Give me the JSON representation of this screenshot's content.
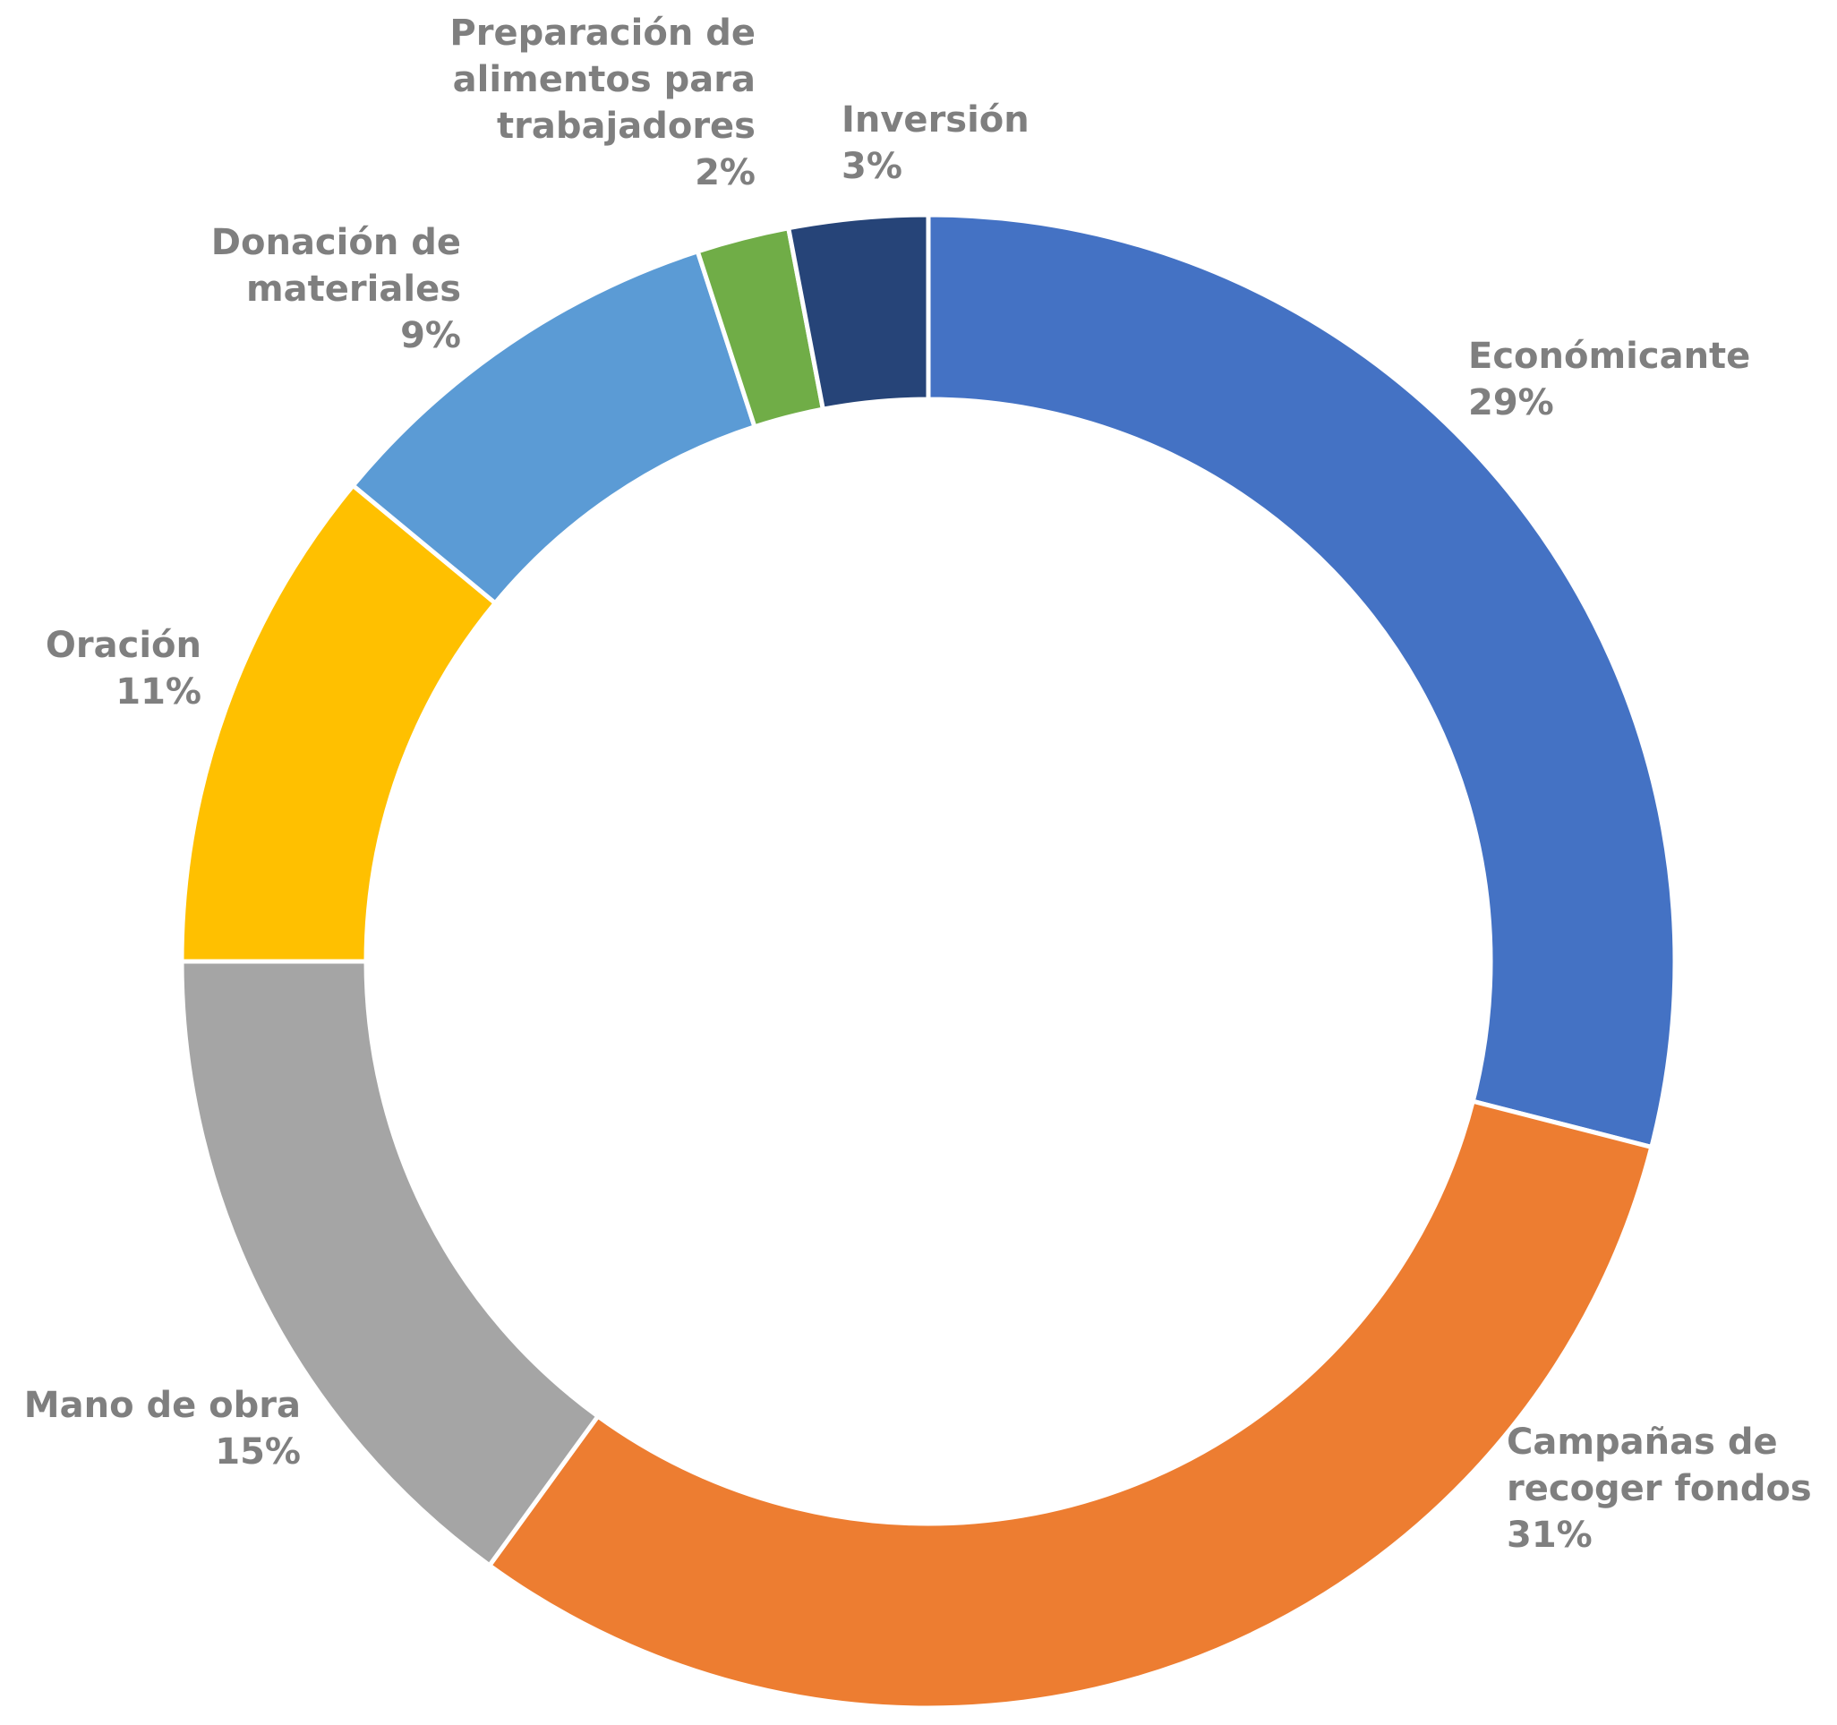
{
  "chart_data": {
    "type": "pie",
    "title": "",
    "slices": [
      {
        "label_lines": [
          "Económicante"
        ],
        "percent_label": "29%",
        "value": 29,
        "color": "#4472c4"
      },
      {
        "label_lines": [
          "Campañas de",
          "recoger fondos"
        ],
        "percent_label": "31%",
        "value": 31,
        "color": "#ed7d31"
      },
      {
        "label_lines": [
          "Mano de obra"
        ],
        "percent_label": "15%",
        "value": 15,
        "color": "#a5a5a5"
      },
      {
        "label_lines": [
          "Oración"
        ],
        "percent_label": "11%",
        "value": 11,
        "color": "#ffc000"
      },
      {
        "label_lines": [
          "Donación de",
          "materiales"
        ],
        "percent_label": "9%",
        "value": 9,
        "color": "#5b9bd5"
      },
      {
        "label_lines": [
          "Preparación de",
          "alimentos para",
          "trabajadores"
        ],
        "percent_label": "2%",
        "value": 2,
        "color": "#70ad47"
      },
      {
        "label_lines": [
          "Inversión"
        ],
        "percent_label": "3%",
        "value": 3,
        "color": "#264478"
      }
    ],
    "start_angle": "12 o'clock",
    "direction": "clockwise",
    "donut": true
  }
}
